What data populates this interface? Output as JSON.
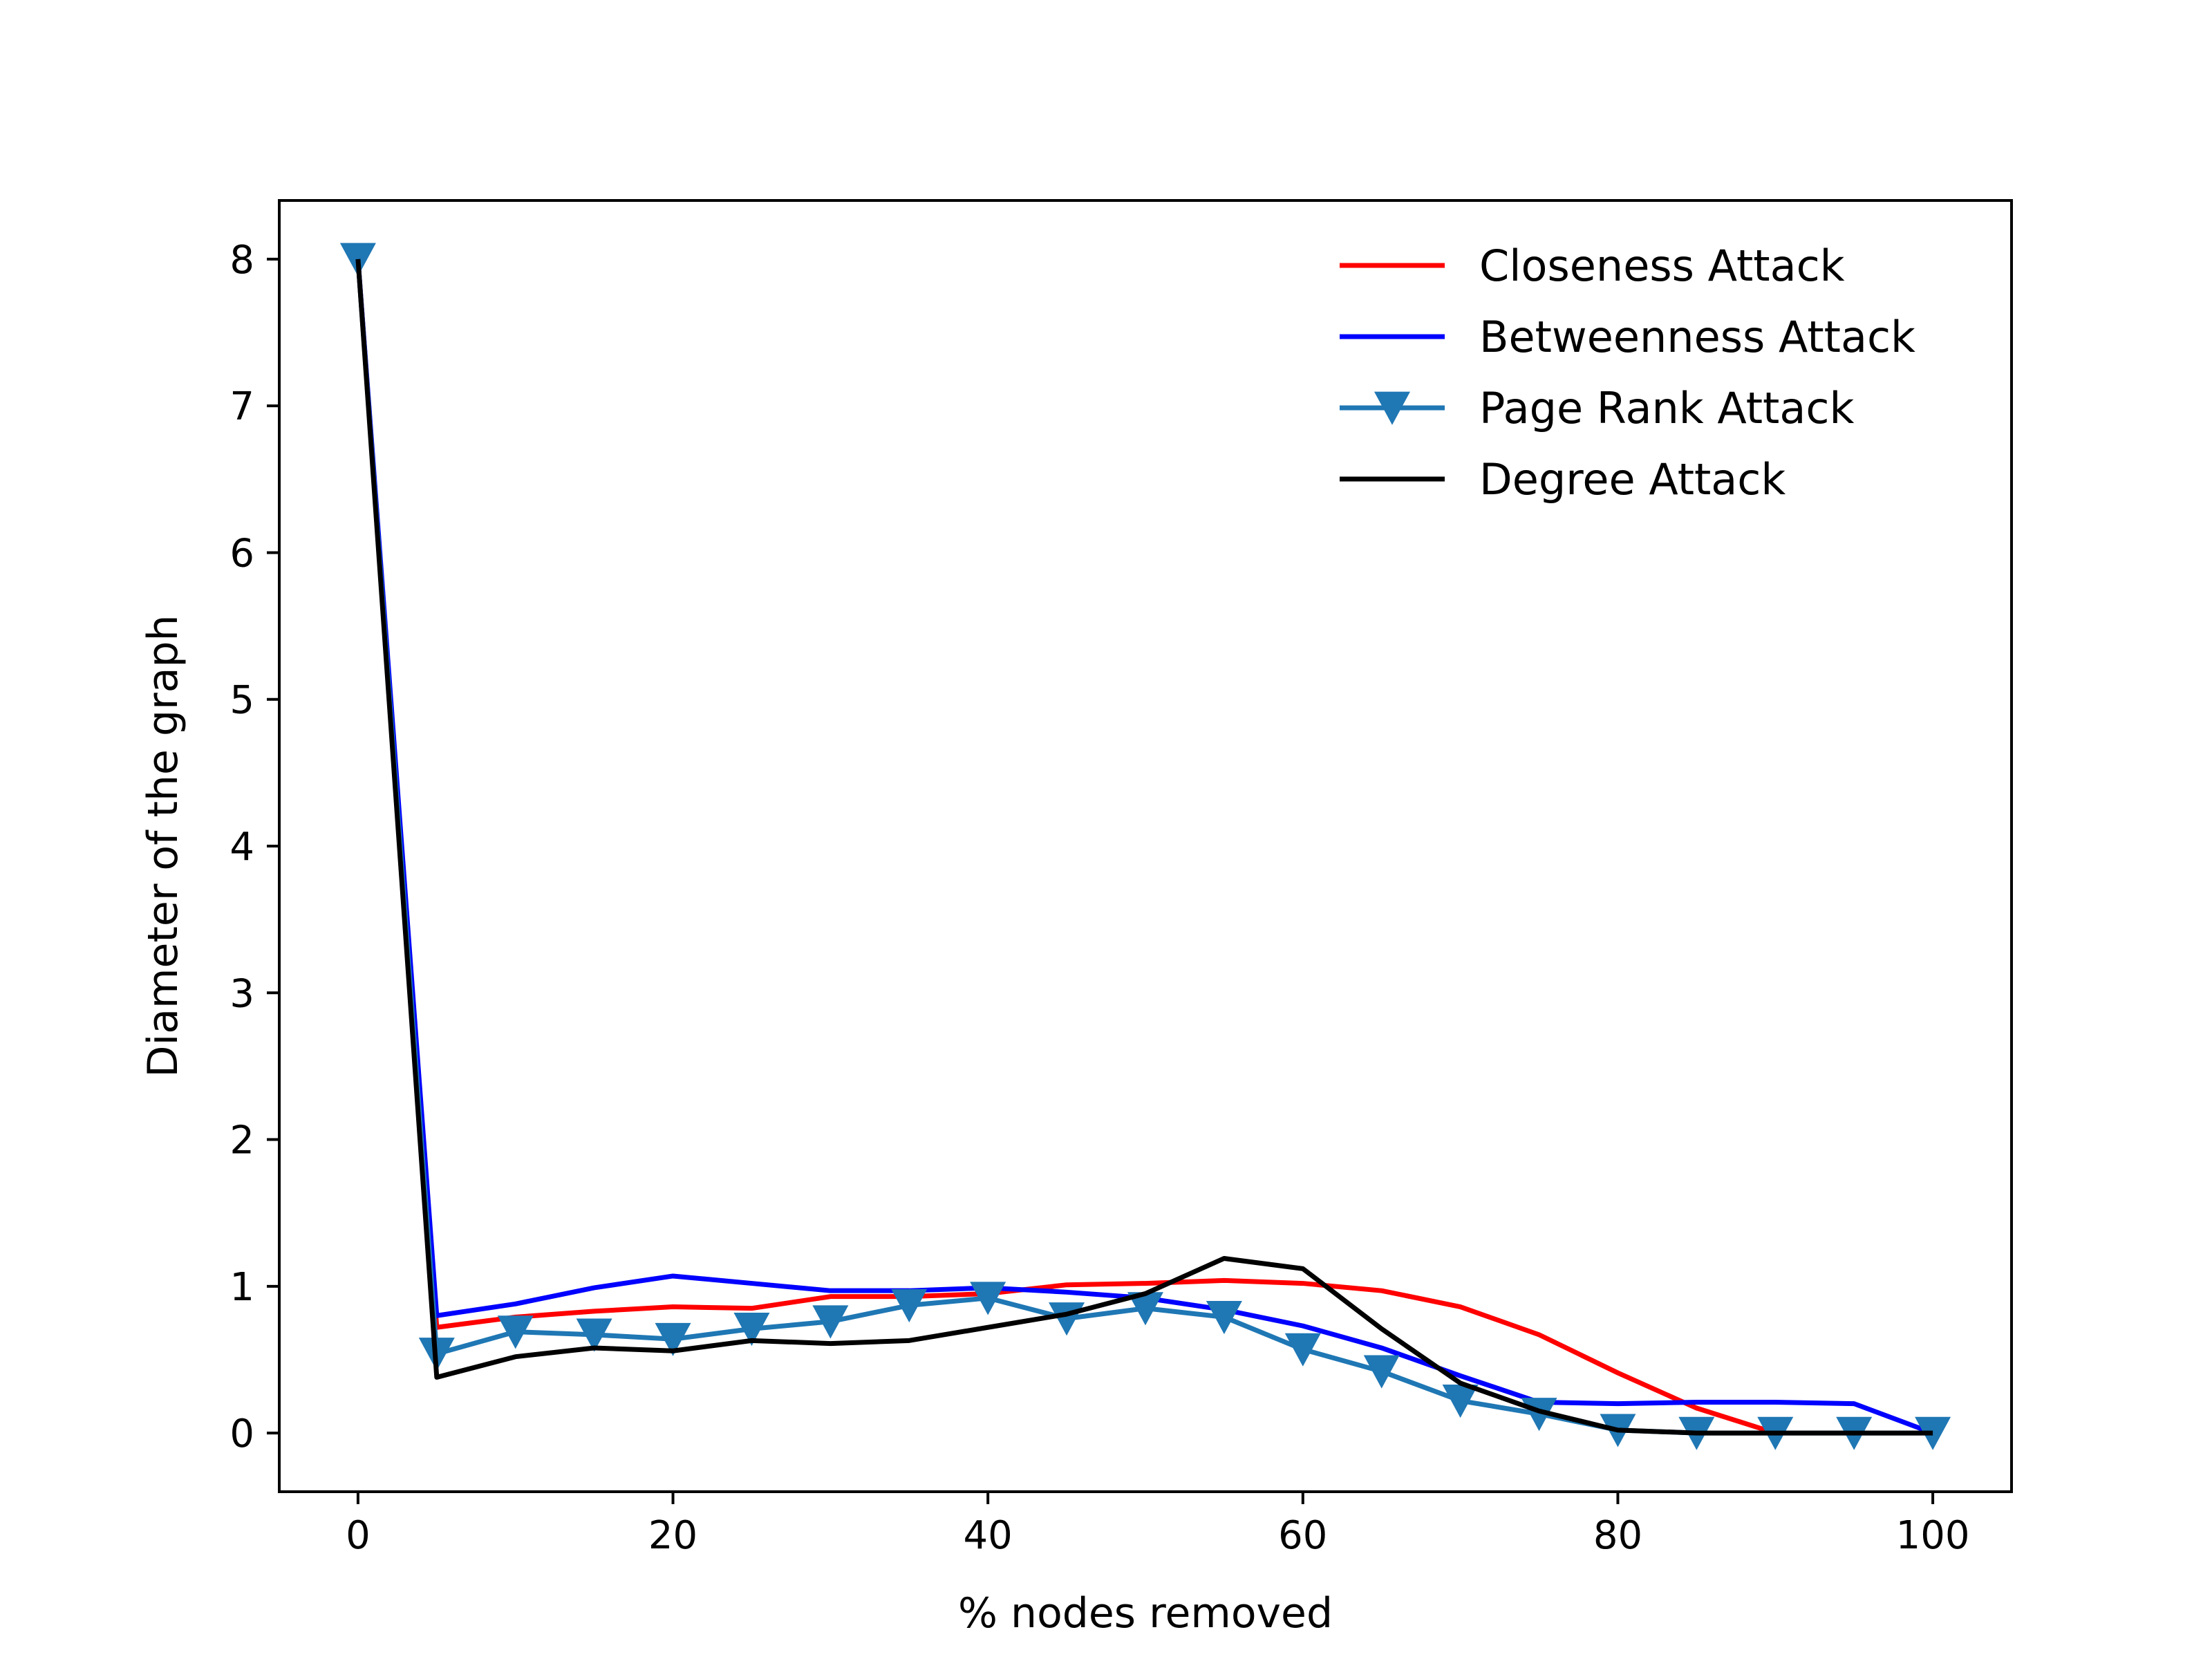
{
  "chart_data": {
    "type": "line",
    "title": "",
    "xlabel": "% nodes removed",
    "ylabel": "Diameter of the graph",
    "xlim": [
      -5,
      105
    ],
    "ylim": [
      -0.4,
      8.4
    ],
    "xticks": [
      0,
      20,
      40,
      60,
      80,
      100
    ],
    "yticks": [
      0,
      1,
      2,
      3,
      4,
      5,
      6,
      7,
      8
    ],
    "grid": false,
    "legend_position": "upper-right",
    "x": [
      0,
      5,
      10,
      15,
      20,
      25,
      30,
      35,
      40,
      45,
      50,
      55,
      60,
      65,
      70,
      75,
      80,
      85,
      90,
      95,
      100
    ],
    "series": [
      {
        "name": "Closeness Attack",
        "color": "#ff0000",
        "marker": "none",
        "values": [
          8,
          0.72,
          0.79,
          0.83,
          0.86,
          0.85,
          0.93,
          0.93,
          0.95,
          1.01,
          1.02,
          1.04,
          1.02,
          0.97,
          0.86,
          0.67,
          0.41,
          0.17,
          0.0,
          null,
          null
        ]
      },
      {
        "name": "Betweenness Attack",
        "color": "#0000ff",
        "marker": "none",
        "values": [
          8,
          0.8,
          0.88,
          0.99,
          1.07,
          1.02,
          0.97,
          0.97,
          0.99,
          0.96,
          0.92,
          0.84,
          0.73,
          0.58,
          0.39,
          0.21,
          0.2,
          0.21,
          0.21,
          0.2,
          0.0
        ]
      },
      {
        "name": "Page Rank Attack",
        "color": "#1f77b4",
        "marker": "triangle-down",
        "values": [
          8,
          0.54,
          0.69,
          0.67,
          0.64,
          0.71,
          0.76,
          0.87,
          0.92,
          0.78,
          0.85,
          0.79,
          0.57,
          0.42,
          0.22,
          0.13,
          0.02,
          0.0,
          0.0,
          0.0,
          0.0
        ]
      },
      {
        "name": "Degree Attack",
        "color": "#000000",
        "marker": "none",
        "values": [
          8,
          0.38,
          0.52,
          0.58,
          0.56,
          0.63,
          0.61,
          0.63,
          0.72,
          0.81,
          0.95,
          1.19,
          1.12,
          0.71,
          0.34,
          0.15,
          0.02,
          0.0,
          0.0,
          0.0,
          0.0
        ]
      }
    ]
  }
}
